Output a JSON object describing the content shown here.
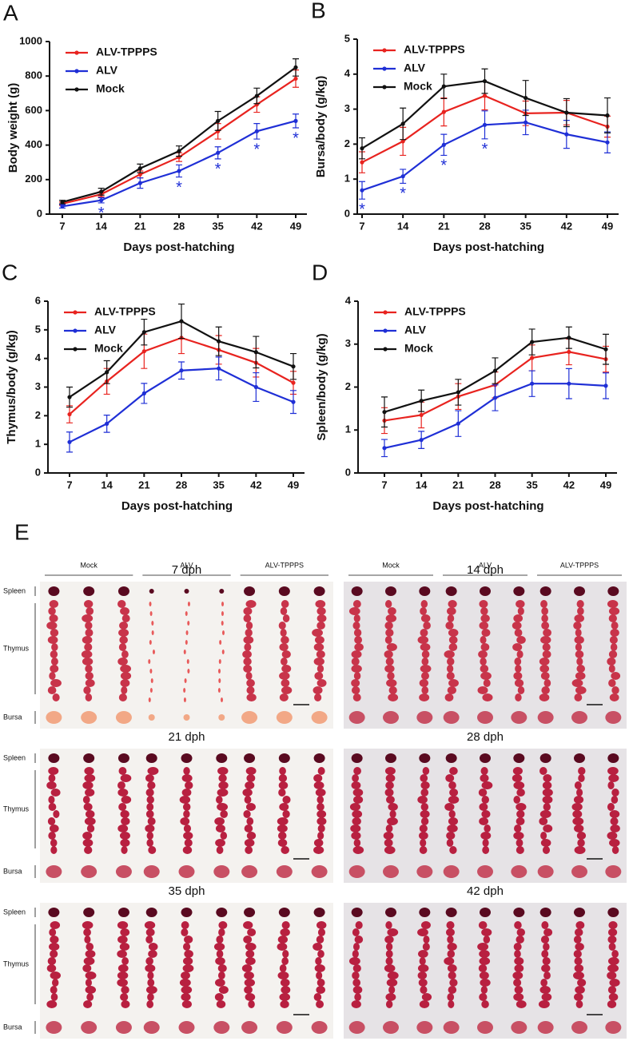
{
  "chart_data": [
    {
      "type": "line",
      "panel_label": "A",
      "y_label": "Body weight (g)",
      "x_label": "Days post-hatching",
      "categories": [
        "7",
        "14",
        "21",
        "28",
        "35",
        "42",
        "49"
      ],
      "ylim": [
        0,
        1000
      ],
      "yticks": [
        0,
        200,
        400,
        600,
        800,
        1000
      ],
      "legend": "top-left",
      "series": [
        {
          "name": "ALV-TPPPS",
          "color": "#e8231f",
          "values": [
            60,
            115,
            230,
            330,
            480,
            635,
            785
          ],
          "errors": [
            10,
            15,
            20,
            25,
            45,
            45,
            50
          ]
        },
        {
          "name": "ALV",
          "color": "#1f2fd6",
          "values": [
            45,
            80,
            180,
            250,
            355,
            480,
            540
          ],
          "errors": [
            10,
            15,
            30,
            35,
            35,
            45,
            40
          ],
          "significance_labels": [
            null,
            "*",
            null,
            "*",
            "*",
            "*",
            "*"
          ]
        },
        {
          "name": "Mock",
          "color": "#111111",
          "values": [
            70,
            130,
            265,
            365,
            540,
            685,
            850
          ],
          "errors": [
            10,
            20,
            25,
            30,
            55,
            45,
            50
          ]
        }
      ]
    },
    {
      "type": "line",
      "panel_label": "B",
      "y_label": "Bursa/body (g/kg)",
      "x_label": "Days post-hatching",
      "categories": [
        "7",
        "14",
        "21",
        "28",
        "35",
        "42",
        "49"
      ],
      "ylim": [
        0,
        5
      ],
      "yticks": [
        0,
        1,
        2,
        3,
        4,
        5
      ],
      "legend": "top-left",
      "series": [
        {
          "name": "ALV-TPPPS",
          "color": "#e8231f",
          "values": [
            1.48,
            2.08,
            2.92,
            3.38,
            2.88,
            2.9,
            2.5
          ],
          "errors": [
            0.3,
            0.4,
            0.4,
            0.4,
            0.35,
            0.35,
            0.3
          ]
        },
        {
          "name": "ALV",
          "color": "#1f2fd6",
          "values": [
            0.68,
            1.08,
            1.98,
            2.55,
            2.62,
            2.28,
            2.05
          ],
          "errors": [
            0.25,
            0.2,
            0.3,
            0.4,
            0.35,
            0.4,
            0.3
          ],
          "significance_labels": [
            "*",
            "*",
            "*",
            "*",
            null,
            null,
            null
          ]
        },
        {
          "name": "Mock",
          "color": "#111111",
          "values": [
            1.88,
            2.58,
            3.65,
            3.8,
            3.32,
            2.9,
            2.82
          ],
          "errors": [
            0.3,
            0.45,
            0.35,
            0.35,
            0.5,
            0.4,
            0.5
          ]
        }
      ]
    },
    {
      "type": "line",
      "panel_label": "C",
      "y_label": "Thymus/body (g/kg)",
      "x_label": "Days post-hatching",
      "categories": [
        "7",
        "14",
        "21",
        "28",
        "35",
        "42",
        "49"
      ],
      "ylim": [
        0,
        6
      ],
      "yticks": [
        0,
        1,
        2,
        3,
        4,
        5,
        6
      ],
      "legend": "top-left",
      "series": [
        {
          "name": "ALV-TPPPS",
          "color": "#e8231f",
          "values": [
            2.05,
            3.2,
            4.25,
            4.72,
            4.3,
            3.85,
            3.15
          ],
          "errors": [
            0.3,
            0.45,
            0.6,
            0.55,
            0.5,
            0.5,
            0.4
          ]
        },
        {
          "name": "ALV",
          "color": "#1f2fd6",
          "values": [
            1.08,
            1.72,
            2.78,
            3.58,
            3.65,
            3.0,
            2.48
          ],
          "errors": [
            0.35,
            0.3,
            0.35,
            0.3,
            0.4,
            0.5,
            0.4
          ]
        },
        {
          "name": "Mock",
          "color": "#111111",
          "values": [
            2.65,
            3.52,
            4.92,
            5.3,
            4.6,
            4.22,
            3.72
          ],
          "errors": [
            0.35,
            0.4,
            0.45,
            0.6,
            0.5,
            0.55,
            0.45
          ]
        }
      ]
    },
    {
      "type": "line",
      "panel_label": "D",
      "y_label": "Spleen/body (g/kg)",
      "x_label": "Days post-hatching",
      "categories": [
        "7",
        "14",
        "21",
        "28",
        "35",
        "42",
        "49"
      ],
      "ylim": [
        0,
        4
      ],
      "yticks": [
        0,
        1,
        2,
        3,
        4
      ],
      "legend": "top-left",
      "series": [
        {
          "name": "ALV-TPPPS",
          "color": "#e8231f",
          "values": [
            1.22,
            1.35,
            1.78,
            2.05,
            2.68,
            2.82,
            2.65
          ],
          "errors": [
            0.3,
            0.3,
            0.3,
            0.3,
            0.3,
            0.3,
            0.3
          ]
        },
        {
          "name": "ALV",
          "color": "#1f2fd6",
          "values": [
            0.58,
            0.77,
            1.15,
            1.75,
            2.08,
            2.08,
            2.03
          ],
          "errors": [
            0.2,
            0.2,
            0.3,
            0.3,
            0.3,
            0.35,
            0.3
          ]
        },
        {
          "name": "Mock",
          "color": "#111111",
          "values": [
            1.42,
            1.68,
            1.88,
            2.38,
            3.05,
            3.15,
            2.88
          ],
          "errors": [
            0.35,
            0.25,
            0.3,
            0.3,
            0.3,
            0.25,
            0.35
          ]
        }
      ]
    }
  ],
  "panel_e": {
    "label": "E",
    "groups": [
      "Mock",
      "ALV",
      "ALV-TPPPS"
    ],
    "organs": [
      "Spleen",
      "Thymus",
      "Bursa"
    ],
    "timepoints": [
      "7 dph",
      "14 dph",
      "21 dph",
      "28 dph",
      "35 dph",
      "42 dph"
    ]
  }
}
